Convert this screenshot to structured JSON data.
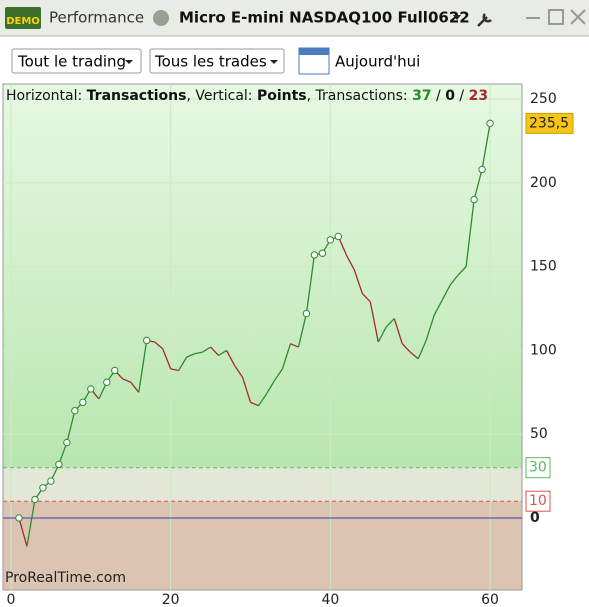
{
  "toolbar": {
    "badge": "DEMO",
    "title": "Performance",
    "instrument": "Micro E-mini NASDAQ100 Full0622"
  },
  "filters": {
    "scope": "Tout le trading",
    "trades": "Tous les trades",
    "period": "Aujourd'hui"
  },
  "chart_data": {
    "type": "line",
    "subtitle_parts": [
      "Horizontal: ",
      "Transactions",
      ", Vertical: ",
      "Points",
      ", Transactions: ",
      "37",
      " / ",
      "0",
      " / ",
      "23"
    ],
    "watermark": "ProRealTime.com",
    "x": [
      1,
      2,
      3,
      4,
      5,
      6,
      7,
      8,
      9,
      10,
      11,
      12,
      13,
      14,
      15,
      16,
      17,
      18,
      19,
      20,
      21,
      22,
      23,
      24,
      25,
      26,
      27,
      28,
      29,
      30,
      31,
      32,
      33,
      34,
      35,
      36,
      37,
      38,
      39,
      40,
      41,
      42,
      43,
      44,
      45,
      46,
      47,
      48,
      49,
      50,
      51,
      52,
      53,
      54,
      55,
      56,
      57,
      58,
      59,
      60
    ],
    "series": [
      {
        "name": "Points",
        "color": "#2e8b2e",
        "down_color": "#a52a2a",
        "values": [
          0,
          -17,
          11,
          18,
          22,
          32,
          45,
          64,
          69,
          77,
          71,
          81,
          88,
          83,
          81,
          75,
          106,
          105,
          101,
          89,
          88,
          96,
          98,
          99,
          102,
          97,
          100,
          91,
          84,
          69,
          67,
          74,
          82,
          89,
          104,
          102,
          122,
          157,
          158,
          166,
          168,
          157,
          148,
          134,
          129,
          105,
          114,
          119,
          104,
          99,
          95,
          106,
          121,
          130,
          139,
          145,
          150,
          190,
          208,
          235.5
        ]
      }
    ],
    "last_value_label": "235,5",
    "xlim": [
      -1,
      64
    ],
    "ylim": [
      -43,
      259
    ],
    "xticks": [
      0,
      20,
      40,
      60
    ],
    "yticks": [
      0,
      50,
      100,
      150,
      200,
      250
    ],
    "reference_lines": [
      {
        "value": 30,
        "color": "#5cb85c"
      },
      {
        "value": 10,
        "color": "#d9534f"
      }
    ],
    "zero_color": "#3b3bb0",
    "grid": true
  }
}
